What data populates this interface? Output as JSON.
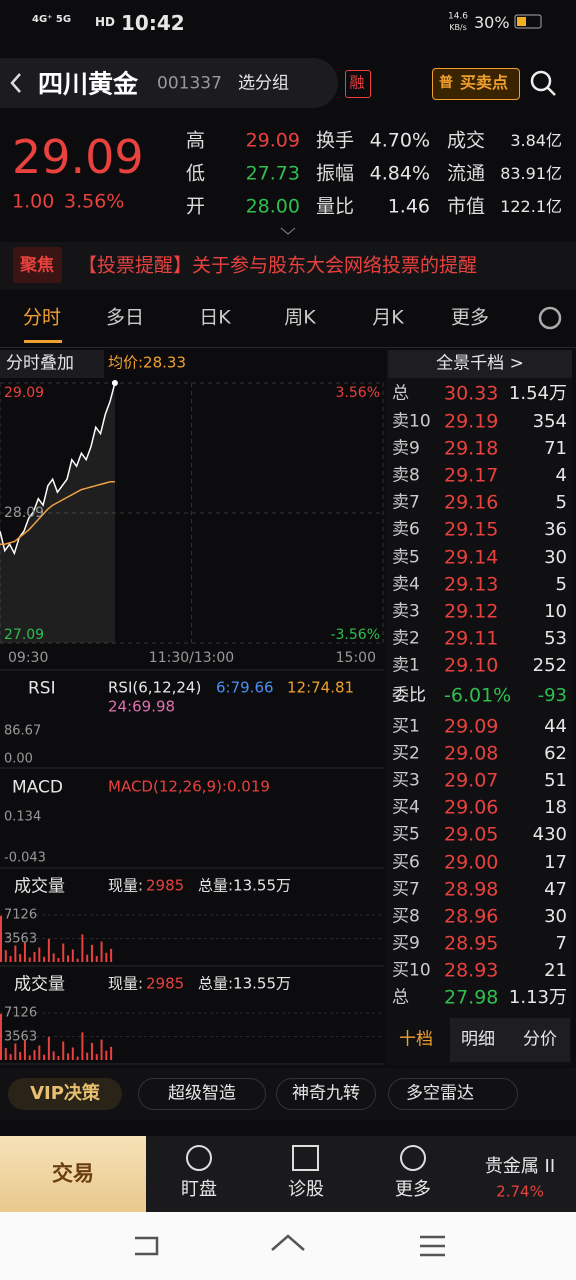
{
  "status": {
    "network": "4G⁺ 5G",
    "hd": "HD",
    "time": "10:42",
    "speed": "14.6",
    "speed_unit": "KB/s",
    "battery": "30%"
  },
  "header": {
    "name": "四川黄金",
    "code": "001337",
    "group": "选分组",
    "badge": "融",
    "signal_tag": "普",
    "signal": "买卖点"
  },
  "quote": {
    "price": "29.09",
    "change": "1.00",
    "change_pct": "3.56%",
    "stats": [
      {
        "label": "高",
        "value": "29.09"
      },
      {
        "label": "换手",
        "value": "4.70%"
      },
      {
        "label": "成交",
        "value": "3.84亿"
      },
      {
        "label": "低",
        "value": "27.73"
      },
      {
        "label": "振幅",
        "value": "4.84%"
      },
      {
        "label": "流通",
        "value": "83.91亿"
      },
      {
        "label": "开",
        "value": "28.00"
      },
      {
        "label": "量比",
        "value": "1.46"
      },
      {
        "label": "市值",
        "value": "122.1亿"
      }
    ]
  },
  "news": {
    "tag": "聚焦",
    "text": "【投票提醒】关于参与股东大会网络投票的提醒"
  },
  "tabs": [
    "分时",
    "多日",
    "日K",
    "周K",
    "月K",
    "更多"
  ],
  "chart_data": {
    "type": "line",
    "overlay": "分时叠加",
    "avg_label": "均价:28.33",
    "x": [
      0,
      3,
      6,
      9,
      12,
      15,
      18,
      21,
      24,
      27,
      30,
      33,
      36,
      39,
      42,
      45,
      48,
      51,
      54,
      57,
      60,
      63,
      66,
      69,
      72
    ],
    "xlim": [
      0,
      240
    ],
    "xticks": [
      {
        "value": 0,
        "label": "09:30"
      },
      {
        "value": 120,
        "label": "11:30/13:00"
      },
      {
        "value": 240,
        "label": "15:00"
      }
    ],
    "ylim": [
      27.09,
      29.09
    ],
    "yticks": [
      29.09,
      28.09,
      27.09
    ],
    "pct_labels": [
      "3.56%",
      "-3.56%"
    ],
    "series": [
      {
        "color": "#ffffff",
        "values": [
          27.95,
          27.8,
          27.85,
          27.78,
          27.9,
          27.95,
          28.05,
          28.1,
          28.2,
          28.15,
          28.3,
          28.35,
          28.25,
          28.3,
          28.35,
          28.5,
          28.45,
          28.55,
          28.5,
          28.6,
          28.75,
          28.7,
          28.85,
          28.95,
          29.09
        ]
      },
      {
        "color": "#f0a040",
        "values": [
          27.85,
          27.85,
          27.86,
          27.87,
          27.9,
          27.93,
          27.96,
          28.0,
          28.04,
          28.08,
          28.12,
          28.15,
          28.17,
          28.19,
          28.21,
          28.23,
          28.25,
          28.27,
          28.28,
          28.29,
          28.3,
          28.31,
          28.32,
          28.33,
          28.33
        ]
      }
    ]
  },
  "indicators": {
    "rsi": {
      "label": "RSI",
      "params": "RSI(6,12,24)",
      "r6": "6:79.66",
      "r12": "12:74.81",
      "r24": "24:69.98",
      "ticks": [
        "86.67",
        "0.00"
      ]
    },
    "macd": {
      "label": "MACD",
      "value": "MACD(12,26,9):0.019",
      "ticks": [
        "0.134",
        "-0.043"
      ]
    },
    "volume": [
      {
        "label": "成交量",
        "now_label": "现量:",
        "now": "2985",
        "total": "总量:13.55万",
        "ylim": [
          0,
          8800
        ],
        "yticks": [
          7126,
          3563
        ],
        "color": "#e8413e",
        "values": [
          7000,
          1800,
          900,
          2500,
          1200,
          3000,
          700,
          1500,
          2200,
          800,
          3500,
          1300,
          600,
          2800,
          1000,
          1900,
          500,
          4200,
          1100,
          2600,
          900,
          3100,
          1400,
          2000
        ]
      },
      {
        "label": "成交量",
        "now_label": "现量:",
        "now": "2985",
        "total": "总量:13.55万",
        "ylim": [
          0,
          8800
        ],
        "yticks": [
          7126,
          3563
        ],
        "color": "#e8413e",
        "values": [
          7000,
          1800,
          900,
          2500,
          1200,
          3000,
          700,
          1500,
          2200,
          800,
          3500,
          1300,
          600,
          2800,
          1000,
          1900,
          500,
          4200,
          1100,
          2600,
          900,
          3100,
          1400,
          2000
        ]
      }
    ]
  },
  "order_book": {
    "title": "全景千档 >",
    "total_ask": {
      "label": "总",
      "price": "30.33",
      "volume": "1.54万"
    },
    "asks": [
      {
        "label": "卖10",
        "price": "29.19",
        "volume": "354"
      },
      {
        "label": "卖9",
        "price": "29.18",
        "volume": "71"
      },
      {
        "label": "卖8",
        "price": "29.17",
        "volume": "4"
      },
      {
        "label": "卖7",
        "price": "29.16",
        "volume": "5"
      },
      {
        "label": "卖6",
        "price": "29.15",
        "volume": "36"
      },
      {
        "label": "卖5",
        "price": "29.14",
        "volume": "30"
      },
      {
        "label": "卖4",
        "price": "29.13",
        "volume": "5"
      },
      {
        "label": "卖3",
        "price": "29.12",
        "volume": "10"
      },
      {
        "label": "卖2",
        "price": "29.11",
        "volume": "53"
      },
      {
        "label": "卖1",
        "price": "29.10",
        "volume": "252"
      }
    ],
    "ratio": {
      "label": "委比",
      "price": "-6.01%",
      "volume": "-93"
    },
    "bids": [
      {
        "label": "买1",
        "price": "29.09",
        "volume": "44"
      },
      {
        "label": "买2",
        "price": "29.08",
        "volume": "62"
      },
      {
        "label": "买3",
        "price": "29.07",
        "volume": "51"
      },
      {
        "label": "买4",
        "price": "29.06",
        "volume": "18"
      },
      {
        "label": "买5",
        "price": "29.05",
        "volume": "430"
      },
      {
        "label": "买6",
        "price": "29.00",
        "volume": "17"
      },
      {
        "label": "买7",
        "price": "28.98",
        "volume": "47"
      },
      {
        "label": "买8",
        "price": "28.96",
        "volume": "30"
      },
      {
        "label": "买9",
        "price": "28.95",
        "volume": "7"
      },
      {
        "label": "买10",
        "price": "28.93",
        "volume": "21"
      }
    ],
    "total_bid": {
      "label": "总",
      "price": "27.98",
      "volume": "1.13万"
    },
    "tabs": [
      "十档",
      "明细",
      "分价"
    ]
  },
  "tools": [
    "VIP决策",
    "超级智造",
    "神奇九转",
    "多空雷达"
  ],
  "nav": {
    "trade": "交易",
    "items": [
      "盯盘",
      "诊股",
      "更多"
    ],
    "sector": "贵金属 II",
    "sector_pct": "2.74%"
  }
}
